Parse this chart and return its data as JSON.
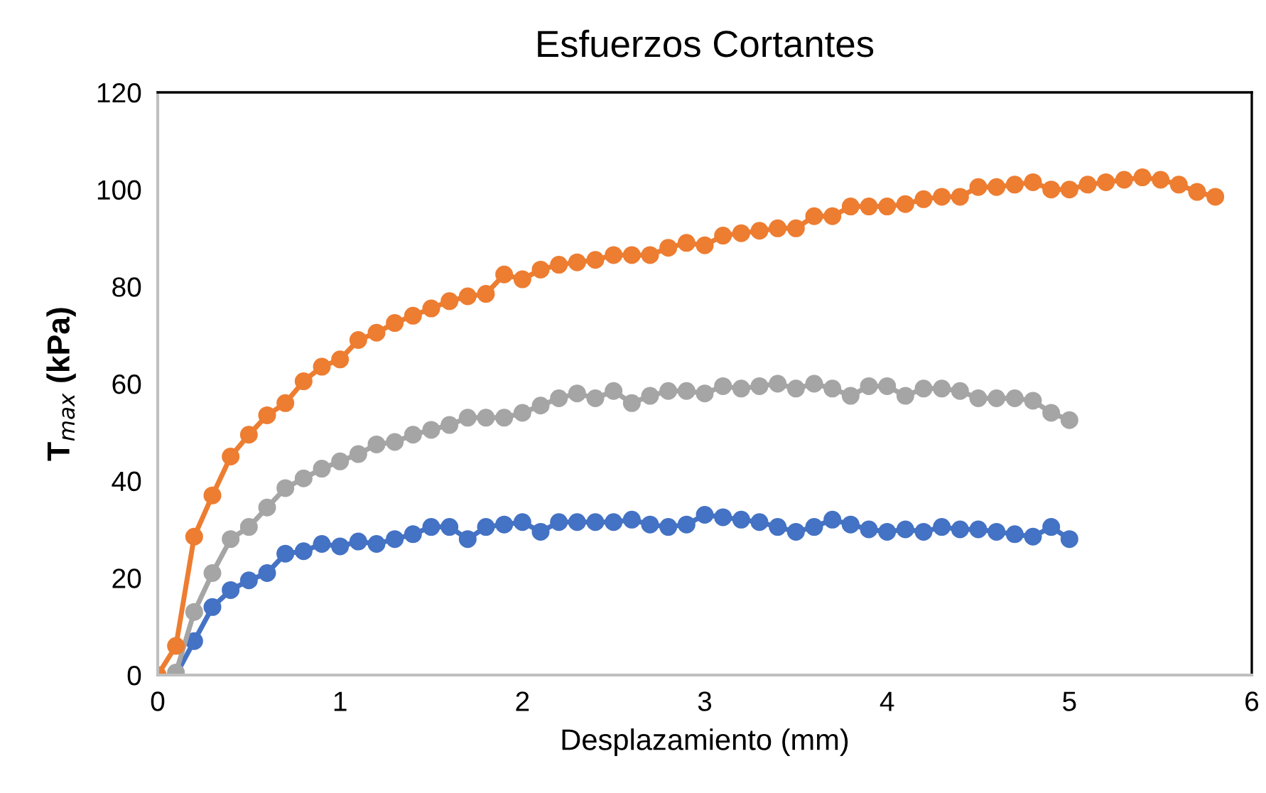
{
  "chart_data": {
    "type": "line",
    "title": "Esfuerzos Cortantes",
    "xlabel": "Desplazamiento (mm)",
    "ylabel": "T$_{max}$ (kPa)",
    "xlim": [
      0,
      6
    ],
    "xticks": [
      0,
      1,
      2,
      3,
      4,
      5,
      6
    ],
    "ylim": [
      0,
      120
    ],
    "yticks": [
      0,
      20,
      40,
      60,
      80,
      100,
      120
    ],
    "grid": false,
    "legend": false,
    "marker": "circle",
    "line_style": "solid",
    "series": [
      {
        "color": "#4472c4",
        "x": [
          0.1,
          0.2,
          0.3,
          0.4,
          0.5,
          0.6,
          0.7,
          0.8,
          0.9,
          1.0,
          1.1,
          1.2,
          1.3,
          1.4,
          1.5,
          1.6,
          1.7,
          1.8,
          1.9,
          2.0,
          2.1,
          2.2,
          2.3,
          2.4,
          2.5,
          2.6,
          2.7,
          2.8,
          2.9,
          3.0,
          3.1,
          3.2,
          3.3,
          3.4,
          3.5,
          3.6,
          3.7,
          3.8,
          3.9,
          4.0,
          4.1,
          4.2,
          4.3,
          4.4,
          4.5,
          4.6,
          4.7,
          4.8,
          4.9,
          5.0
        ],
        "values": [
          0,
          7,
          14,
          17.5,
          19.5,
          21,
          25,
          25.5,
          27,
          26.5,
          27.5,
          27,
          28,
          29,
          30.5,
          30.5,
          28,
          30.5,
          31,
          31.5,
          29.5,
          31.5,
          31.5,
          31.5,
          31.5,
          32,
          31,
          30.5,
          31,
          33,
          32.5,
          32,
          31.5,
          30.5,
          29.5,
          30.5,
          32,
          31,
          30,
          29.5,
          30,
          29.5,
          30.5,
          30,
          30,
          29.5,
          29,
          28.5,
          30.5,
          28
        ]
      },
      {
        "color": "#a5a5a5",
        "x": [
          0.1,
          0.2,
          0.3,
          0.4,
          0.5,
          0.6,
          0.7,
          0.8,
          0.9,
          1.0,
          1.1,
          1.2,
          1.3,
          1.4,
          1.5,
          1.6,
          1.7,
          1.8,
          1.9,
          2.0,
          2.1,
          2.2,
          2.3,
          2.4,
          2.5,
          2.6,
          2.7,
          2.8,
          2.9,
          3.0,
          3.1,
          3.2,
          3.3,
          3.4,
          3.5,
          3.6,
          3.7,
          3.8,
          3.9,
          4.0,
          4.1,
          4.2,
          4.3,
          4.4,
          4.5,
          4.6,
          4.7,
          4.8,
          4.9,
          5.0
        ],
        "values": [
          0.5,
          13,
          21,
          28,
          30.5,
          34.5,
          38.5,
          40.5,
          42.5,
          44,
          45.5,
          47.5,
          48,
          49.5,
          50.5,
          51.5,
          53,
          53,
          53,
          54,
          55.5,
          57,
          58,
          57,
          58.5,
          56,
          57.5,
          58.5,
          58.5,
          58,
          59.5,
          59,
          59.5,
          60,
          59,
          60,
          59,
          57.5,
          59.5,
          59.5,
          57.5,
          59,
          59,
          58.5,
          57,
          57,
          57,
          56.5,
          54,
          52.5
        ]
      },
      {
        "color": "#ed7d31",
        "x": [
          0,
          0.1,
          0.2,
          0.3,
          0.4,
          0.5,
          0.6,
          0.7,
          0.8,
          0.9,
          1.0,
          1.1,
          1.2,
          1.3,
          1.4,
          1.5,
          1.6,
          1.7,
          1.8,
          1.9,
          2.0,
          2.1,
          2.2,
          2.3,
          2.4,
          2.5,
          2.6,
          2.7,
          2.8,
          2.9,
          3.0,
          3.1,
          3.2,
          3.3,
          3.4,
          3.5,
          3.6,
          3.7,
          3.8,
          3.9,
          4.0,
          4.1,
          4.2,
          4.3,
          4.4,
          4.5,
          4.6,
          4.7,
          4.8,
          4.9,
          5.0,
          5.1,
          5.2,
          5.3,
          5.4,
          5.5,
          5.6,
          5.7,
          5.8
        ],
        "values": [
          0,
          6,
          28.5,
          37,
          45,
          49.5,
          53.5,
          56,
          60.5,
          63.5,
          65,
          69,
          70.5,
          72.5,
          74,
          75.5,
          77,
          78,
          78.5,
          82.5,
          81.5,
          83.5,
          84.5,
          85,
          85.5,
          86.5,
          86.5,
          86.5,
          88,
          89,
          88.5,
          90.5,
          91,
          91.5,
          92,
          92,
          94.5,
          94.5,
          96.5,
          96.5,
          96.5,
          97,
          98,
          98.5,
          98.5,
          100.5,
          100.5,
          101,
          101.5,
          100,
          100,
          101,
          101.5,
          102,
          102.5,
          102,
          101,
          99.5,
          98.5
        ]
      }
    ]
  }
}
